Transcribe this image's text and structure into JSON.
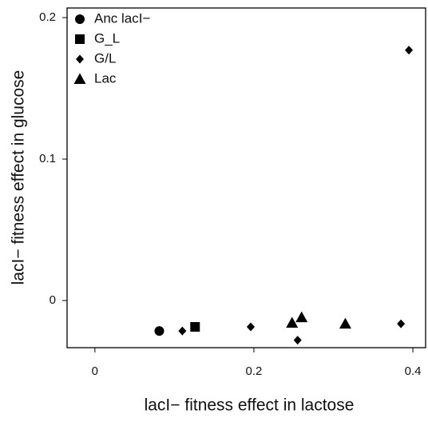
{
  "chart_data": {
    "type": "scatter",
    "xlabel": "lacI− fitness effect in lactose",
    "ylabel": "lacI− fitness effect in glucose",
    "xlim": [
      -0.035,
      0.416
    ],
    "ylim": [
      -0.0333,
      0.2068
    ],
    "xticks": [
      0,
      0.2,
      0.4
    ],
    "yticks": [
      0,
      0.1,
      0.2
    ],
    "legend": "upper left",
    "series": [
      {
        "name": "Anc lacI−",
        "color": "#000000",
        "marker": "circle",
        "x": [
          0.081
        ],
        "y": [
          -0.0215
        ]
      },
      {
        "name": "G_L",
        "color": "#000000",
        "marker": "square",
        "x": [
          0.126
        ],
        "y": [
          -0.0186
        ]
      },
      {
        "name": "G/L",
        "color": "#000000",
        "marker": "diamond",
        "x": [
          0.11,
          0.196,
          0.255,
          0.385,
          0.395
        ],
        "y": [
          -0.0215,
          -0.0186,
          -0.028,
          -0.0164,
          0.177
        ]
      },
      {
        "name": "Lac",
        "color": "#000000",
        "marker": "triangle",
        "x": [
          0.248,
          0.26,
          0.315
        ],
        "y": [
          -0.0158,
          -0.0119,
          -0.0164
        ]
      }
    ]
  }
}
